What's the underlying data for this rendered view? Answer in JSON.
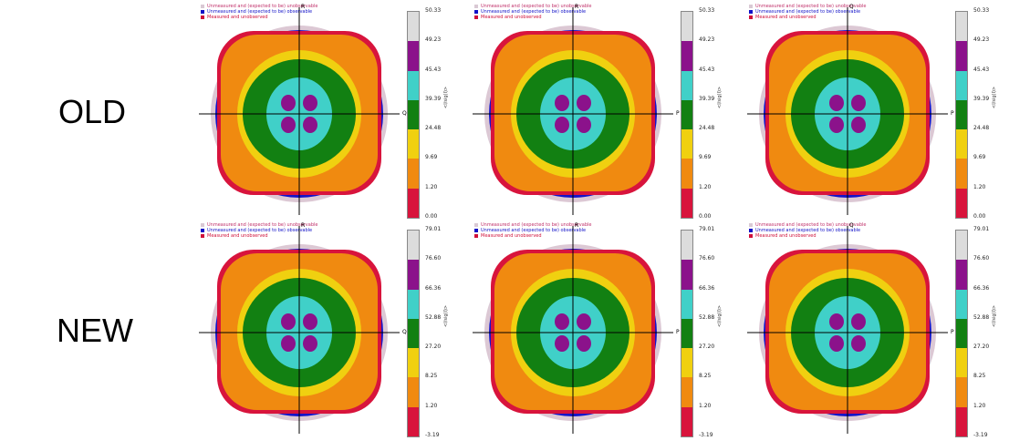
{
  "rows": [
    {
      "label": "OLD",
      "ticks": [
        "50.33",
        "49.23",
        "45.43",
        "39.39",
        "24.48",
        "9.69",
        "1.20",
        "0.00"
      ]
    },
    {
      "label": "NEW",
      "ticks": [
        "79.01",
        "76.60",
        "66.36",
        "52.88",
        "27.20",
        "8.25",
        "1.20",
        "-3.19"
      ]
    }
  ],
  "legend": [
    {
      "text": "Unmeasured and (expected to be) unobservable",
      "color": "#d9c9d4"
    },
    {
      "text": "Unmeasured and (expected to be) observable",
      "color": "#1010c8"
    },
    {
      "text": "Measured and unobserved",
      "color": "#d0103a"
    }
  ],
  "panels": [
    {
      "top_axis": "R",
      "right_axis": "Q"
    },
    {
      "top_axis": "R",
      "right_axis": "P"
    },
    {
      "top_axis": "Q",
      "right_axis": "P"
    }
  ],
  "unit_label": "<I/sig(I)>",
  "band_colors": [
    "#dcdcdc",
    "#8b128b",
    "#40d0c8",
    "#128012",
    "#f0d010",
    "#f08a10",
    "#d8143c"
  ]
}
